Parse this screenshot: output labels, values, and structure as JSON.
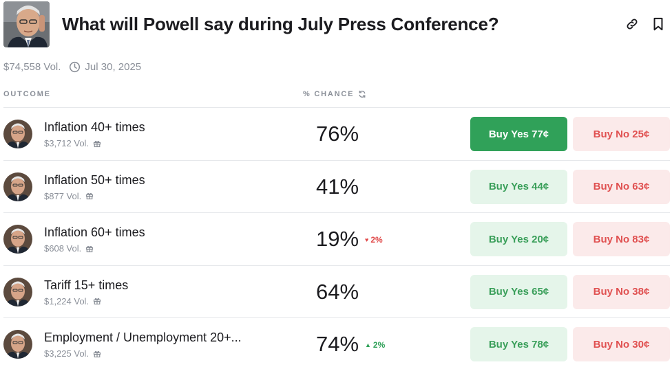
{
  "event": {
    "title": "What will Powell say during July Press Conference?",
    "volume": "$74,558 Vol.",
    "date": "Jul 30, 2025",
    "link_icon": "link-icon",
    "bookmark_icon": "bookmark-icon"
  },
  "table": {
    "outcome_header": "OUTCOME",
    "chance_header": "% CHANCE"
  },
  "colors": {
    "yes_active_bg": "#30a159",
    "yes_bg": "#e5f5ea",
    "yes_text": "#3a9f5a",
    "no_bg": "#fbeaea",
    "no_text": "#e05050",
    "delta_down": "#e04848",
    "delta_up": "#30a159"
  },
  "outcomes": [
    {
      "name": "Inflation 40+ times",
      "volume": "$3,712 Vol.",
      "chance": "76%",
      "delta": "",
      "delta_dir": "",
      "yes_label": "Buy Yes 77¢",
      "no_label": "Buy No 25¢",
      "yes_active": true
    },
    {
      "name": "Inflation 50+ times",
      "volume": "$877 Vol.",
      "chance": "41%",
      "delta": "",
      "delta_dir": "",
      "yes_label": "Buy Yes 44¢",
      "no_label": "Buy No 63¢",
      "yes_active": false
    },
    {
      "name": "Inflation 60+ times",
      "volume": "$608 Vol.",
      "chance": "19%",
      "delta": "2%",
      "delta_dir": "down",
      "yes_label": "Buy Yes 20¢",
      "no_label": "Buy No 83¢",
      "yes_active": false
    },
    {
      "name": "Tariff 15+ times",
      "volume": "$1,224 Vol.",
      "chance": "64%",
      "delta": "",
      "delta_dir": "",
      "yes_label": "Buy Yes 65¢",
      "no_label": "Buy No 38¢",
      "yes_active": false
    },
    {
      "name": "Employment / Unemployment 20+...",
      "volume": "$3,225 Vol.",
      "chance": "74%",
      "delta": "2%",
      "delta_dir": "up",
      "yes_label": "Buy Yes 78¢",
      "no_label": "Buy No 30¢",
      "yes_active": false
    }
  ]
}
